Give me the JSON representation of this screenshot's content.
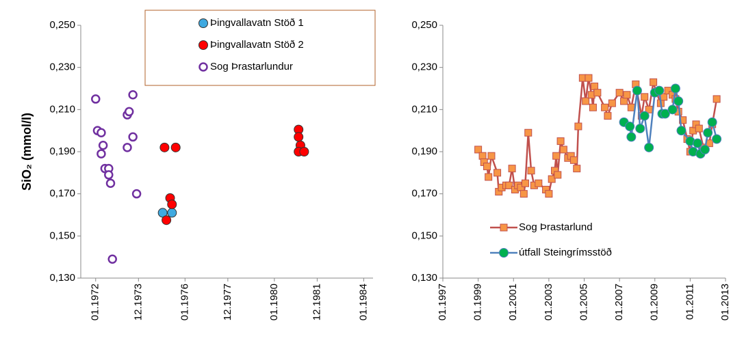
{
  "chart_data": [
    {
      "type": "scatter",
      "y_label": "SiO₂ (mmol/l)",
      "legend": "upper center",
      "legend_border": "#b0602a",
      "xlim": [
        "1971-05",
        "1984-06"
      ],
      "xticks": [
        {
          "value": "1972-01",
          "label": "01.1972"
        },
        {
          "value": "1973-12",
          "label": "12.1973"
        },
        {
          "value": "1976-01",
          "label": "01.1976"
        },
        {
          "value": "1977-12",
          "label": "12.1977"
        },
        {
          "value": "1980-01",
          "label": "01.1980"
        },
        {
          "value": "1981-12",
          "label": "12.1981"
        },
        {
          "value": "1984-01",
          "label": "01.1984"
        }
      ],
      "ylim": [
        0.13,
        0.25
      ],
      "yticks": [
        {
          "value": 0.13,
          "label": "0,130"
        },
        {
          "value": 0.15,
          "label": "0,150"
        },
        {
          "value": 0.17,
          "label": "0,170"
        },
        {
          "value": 0.19,
          "label": "0,190"
        },
        {
          "value": 0.21,
          "label": "0,210"
        },
        {
          "value": 0.23,
          "label": "0,230"
        },
        {
          "value": 0.25,
          "label": "0,250"
        }
      ],
      "series": [
        {
          "name": "Þingvallavatn Stöð 1",
          "color": "#3fa9e0",
          "marker": "circle",
          "x": [
            "1975-01",
            "1975-06"
          ],
          "values": [
            0.161,
            0.161
          ]
        },
        {
          "name": "Þingvallavatn Stöð 2",
          "color": "#ff0000",
          "marker": "circle",
          "x": [
            "1975-02",
            "1975-08",
            "1975-05",
            "1975-06",
            "1975-03",
            "1981-02",
            "1981-02",
            "1981-03",
            "1981-02",
            "1981-05"
          ],
          "values": [
            0.192,
            0.192,
            0.168,
            0.165,
            0.1575,
            0.2005,
            0.197,
            0.193,
            0.19,
            0.19
          ]
        },
        {
          "name": "Sog Þrastarlundur",
          "color": "#7030a0",
          "marker": "open-circle",
          "x": [
            "1972-01",
            "1972-02",
            "1972-04",
            "1972-05",
            "1972-04",
            "1972-06",
            "1972-08",
            "1972-08",
            "1972-09",
            "1972-10",
            "1973-06",
            "1973-07",
            "1973-06",
            "1973-09",
            "1973-09",
            "1973-11"
          ],
          "values": [
            0.215,
            0.2,
            0.199,
            0.193,
            0.189,
            0.182,
            0.182,
            0.179,
            0.175,
            0.139,
            0.2075,
            0.209,
            0.192,
            0.197,
            0.217,
            0.17
          ]
        }
      ]
    },
    {
      "type": "line",
      "legend": "lower left",
      "xlim": [
        "1997-01",
        "2013-01"
      ],
      "xticks": [
        {
          "value": "1997-01",
          "label": "01.1997"
        },
        {
          "value": "1999-01",
          "label": "01.1999"
        },
        {
          "value": "2001-01",
          "label": "01.2001"
        },
        {
          "value": "2003-01",
          "label": "01.2003"
        },
        {
          "value": "2005-01",
          "label": "01.2005"
        },
        {
          "value": "2007-01",
          "label": "01.2007"
        },
        {
          "value": "2009-01",
          "label": "01.2009"
        },
        {
          "value": "2011-01",
          "label": "01.2011"
        },
        {
          "value": "2013-01",
          "label": "01.2013"
        }
      ],
      "ylim": [
        0.13,
        0.25
      ],
      "yticks": [
        {
          "value": 0.13,
          "label": "0,130"
        },
        {
          "value": 0.15,
          "label": "0,150"
        },
        {
          "value": 0.17,
          "label": "0,170"
        },
        {
          "value": 0.19,
          "label": "0,190"
        },
        {
          "value": 0.21,
          "label": "0,210"
        },
        {
          "value": 0.23,
          "label": "0,230"
        },
        {
          "value": 0.25,
          "label": "0,250"
        }
      ],
      "series": [
        {
          "name": "Sog Þrastarlund",
          "color": "#c0504d",
          "marker_color": "#f79646",
          "marker": "square",
          "x": [
            "1999-01",
            "1999-04",
            "1999-05",
            "1999-07",
            "1999-08",
            "1999-10",
            "2000-02",
            "2000-03",
            "2000-05",
            "2000-08",
            "2000-10",
            "2000-12",
            "2001-02",
            "2001-04",
            "2001-06",
            "2001-08",
            "2001-09",
            "2001-11",
            "2002-01",
            "2002-03",
            "2002-06",
            "2002-11",
            "2003-01",
            "2003-03",
            "2003-05",
            "2003-06",
            "2003-07",
            "2003-09",
            "2003-11",
            "2004-02",
            "2004-04",
            "2004-06",
            "2004-08",
            "2004-09",
            "2004-12",
            "2005-02",
            "2005-04",
            "2005-06",
            "2005-07",
            "2005-08",
            "2005-10",
            "2006-03",
            "2006-05",
            "2006-08",
            "2007-01",
            "2007-04",
            "2007-06",
            "2007-09",
            "2007-12",
            "2008-04",
            "2008-06",
            "2008-09",
            "2008-12",
            "2009-02",
            "2009-05",
            "2009-07",
            "2009-10",
            "2010-01",
            "2010-03",
            "2010-05",
            "2010-08",
            "2010-11",
            "2011-01",
            "2011-03",
            "2011-05",
            "2011-07",
            "2011-10",
            "2012-02",
            "2012-04",
            "2012-07"
          ],
          "values": [
            0.191,
            0.188,
            0.185,
            0.183,
            0.178,
            0.188,
            0.18,
            0.171,
            0.173,
            0.174,
            0.174,
            0.182,
            0.172,
            0.174,
            0.173,
            0.17,
            0.175,
            0.199,
            0.181,
            0.174,
            0.175,
            0.172,
            0.17,
            0.177,
            0.181,
            0.188,
            0.179,
            0.195,
            0.191,
            0.187,
            0.188,
            0.186,
            0.182,
            0.202,
            0.225,
            0.214,
            0.225,
            0.217,
            0.211,
            0.221,
            0.218,
            0.211,
            0.207,
            0.213,
            0.218,
            0.214,
            0.217,
            0.211,
            0.222,
            0.207,
            0.216,
            0.21,
            0.223,
            0.218,
            0.213,
            0.216,
            0.219,
            0.217,
            0.215,
            0.209,
            0.205,
            0.196,
            0.19,
            0.2,
            0.203,
            0.201,
            0.192,
            0.194,
            0.203,
            0.215
          ]
        },
        {
          "name": "útfall Steingrímsstöð",
          "color": "#4f81bd",
          "marker_color": "#00b050",
          "marker": "circle",
          "x": [
            "2007-04",
            "2007-08",
            "2007-09",
            "2008-01",
            "2008-03",
            "2008-06",
            "2008-09",
            "2009-01",
            "2009-04",
            "2009-06",
            "2009-08",
            "2010-01",
            "2010-03",
            "2010-05",
            "2010-07",
            "2011-01",
            "2011-03",
            "2011-06",
            "2011-08",
            "2011-11",
            "2012-01",
            "2012-04",
            "2012-07"
          ],
          "values": [
            0.204,
            0.202,
            0.197,
            0.219,
            0.201,
            0.207,
            0.192,
            0.218,
            0.219,
            0.208,
            0.208,
            0.21,
            0.22,
            0.214,
            0.2,
            0.195,
            0.19,
            0.194,
            0.189,
            0.191,
            0.199,
            0.204,
            0.196
          ]
        }
      ]
    }
  ]
}
